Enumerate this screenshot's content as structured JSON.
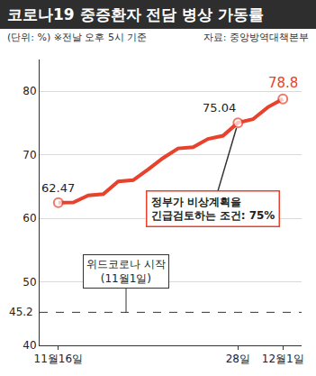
{
  "chart_data": {
    "type": "line",
    "title": "코로나19 중증환자 전담 병상 가동률",
    "subtitle": "(단위: %) ※전날 오후 5시 기준",
    "source": "자료: 중앙방역대책본부",
    "categories": [
      "11월16일",
      null,
      null,
      null,
      null,
      null,
      null,
      null,
      null,
      null,
      null,
      null,
      "28일",
      null,
      null,
      "12월1일"
    ],
    "values": [
      62.47,
      62.5,
      63.6,
      63.8,
      65.8,
      66.0,
      67.7,
      69.5,
      71.0,
      71.2,
      72.5,
      73.0,
      75.04,
      75.6,
      77.5,
      78.8
    ],
    "value_labels": [
      "62.47",
      null,
      null,
      null,
      null,
      null,
      null,
      null,
      null,
      null,
      null,
      null,
      "75.04",
      null,
      null,
      "78.8"
    ],
    "color": "#e8412c",
    "ylim": [
      40,
      85
    ],
    "yticks": [
      40,
      50,
      60,
      70,
      80
    ],
    "grid": true,
    "reference_line": {
      "value": 45.2,
      "label": "45.2",
      "line_style": "dashed"
    },
    "annotations": [
      {
        "lines": [
          "정부가 비상계획을",
          "긴급검토하는 조건: 75%"
        ],
        "category_index": 12
      },
      {
        "lines": [
          "위드코로나 시작",
          "(11월1일)"
        ]
      }
    ]
  }
}
